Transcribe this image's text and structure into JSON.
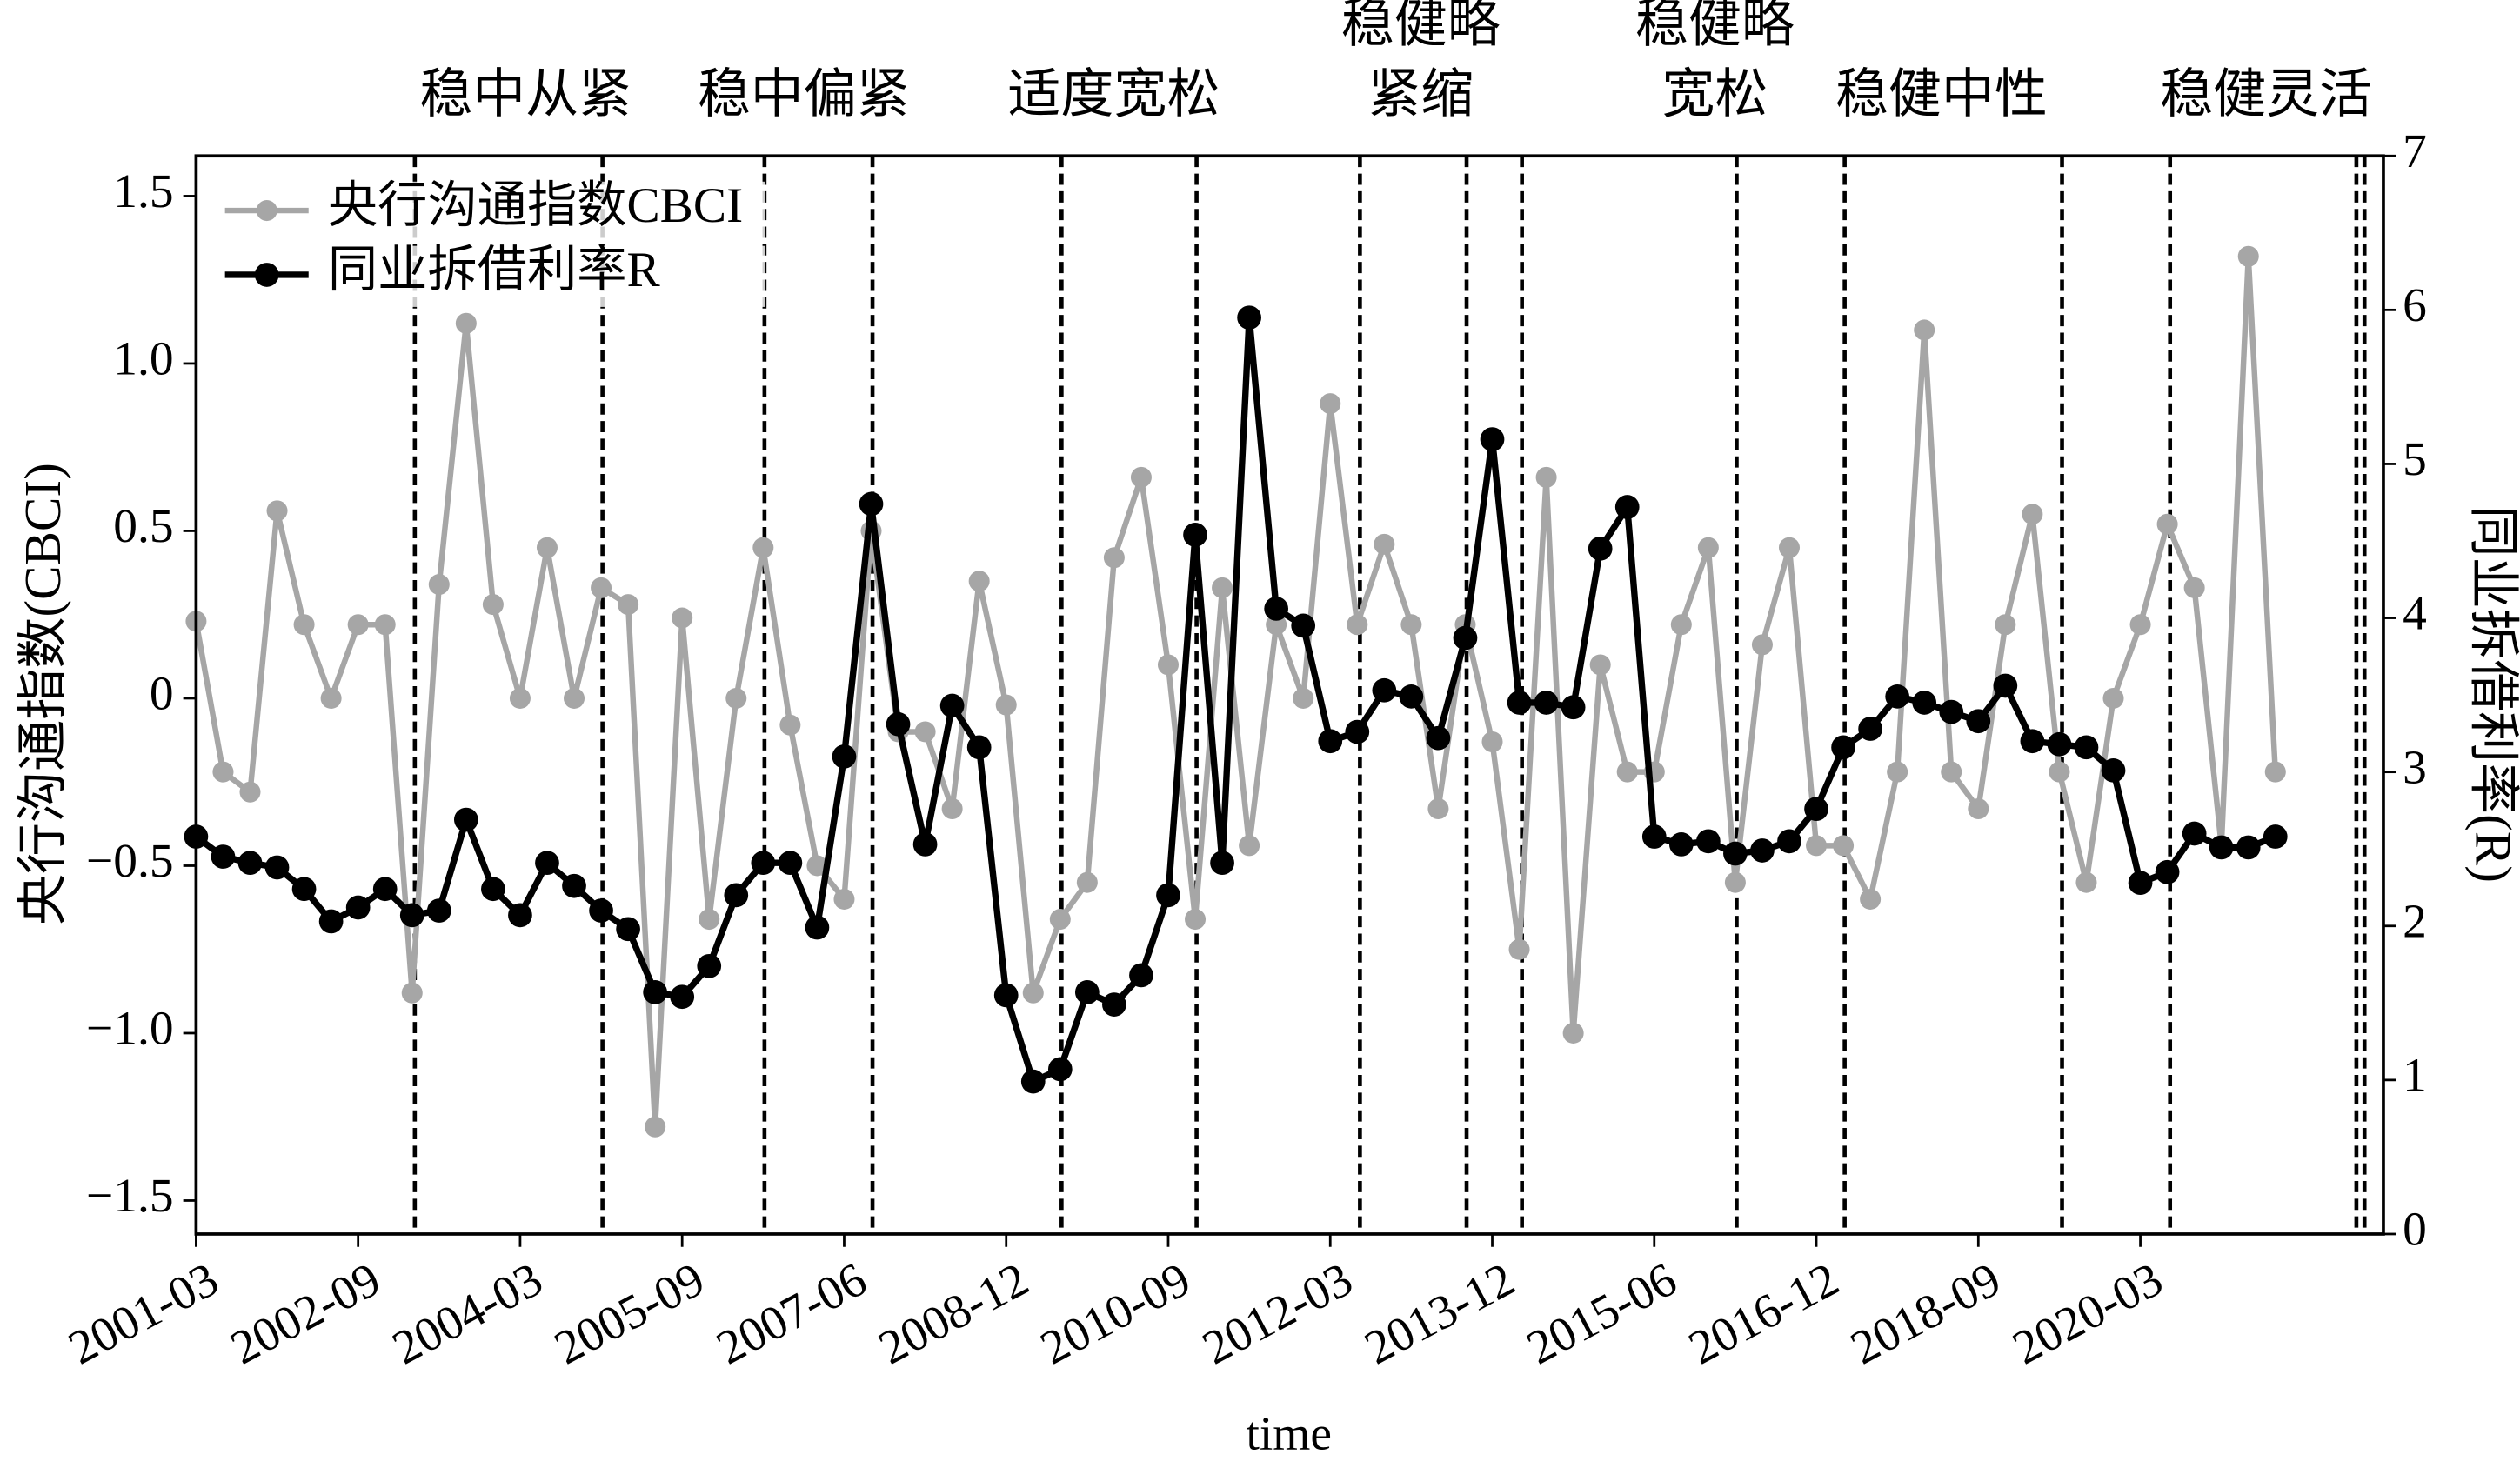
{
  "chart_data": {
    "type": "line",
    "xlabel": "time",
    "ylabel": "央行沟通指数(CBCI)",
    "y2label": "同业拆借利率(R)",
    "categories": [
      "2001-03",
      null,
      null,
      null,
      null,
      null,
      "2002-09",
      null,
      null,
      null,
      null,
      null,
      "2004-03",
      null,
      null,
      null,
      null,
      null,
      "2005-09",
      null,
      null,
      null,
      null,
      null,
      "2007-06",
      null,
      null,
      null,
      null,
      null,
      "2008-12",
      null,
      null,
      null,
      null,
      null,
      "2010-09",
      null,
      null,
      null,
      null,
      null,
      "2012-03",
      null,
      null,
      null,
      null,
      null,
      "2013-12",
      null,
      null,
      null,
      null,
      null,
      "2015-06",
      null,
      null,
      null,
      null,
      null,
      "2016-12",
      null,
      null,
      null,
      null,
      null,
      "2018-09",
      null,
      null,
      null,
      null,
      null,
      "2020-03",
      null,
      null,
      null,
      null,
      null
    ],
    "xlim": [
      0,
      81
    ],
    "ylim": [
      -1.6,
      1.62
    ],
    "yticks": [
      {
        "value": -1.5,
        "label": "−1.5"
      },
      {
        "value": -1,
        "label": "−1.0"
      },
      {
        "value": -0.5,
        "label": "−0.5"
      },
      0,
      0.5,
      {
        "value": 1,
        "label": "1.0"
      },
      1.5
    ],
    "y2lim": [
      0,
      7
    ],
    "y2ticks": [
      0,
      1,
      2,
      3,
      4,
      5,
      6,
      7
    ],
    "legend": "upper left",
    "series": [
      {
        "name": "央行沟通指数CBCI",
        "color": "#a6a6a6",
        "values": [
          0.23,
          -0.22,
          -0.28,
          0.56,
          0.22,
          0.0,
          0.22,
          0.22,
          -0.88,
          0.34,
          1.12,
          0.28,
          0.0,
          0.45,
          0.0,
          0.33,
          0.28,
          -1.28,
          0.24,
          -0.66,
          0.0,
          0.45,
          -0.08,
          -0.5,
          -0.6,
          0.5,
          -0.1,
          -0.1,
          -0.33,
          0.35,
          -0.02,
          -0.88,
          -0.66,
          -0.55,
          0.42,
          0.66,
          0.1,
          -0.66,
          0.33,
          -0.44,
          0.22,
          0.0,
          0.88,
          0.22,
          0.46,
          0.22,
          -0.33,
          0.22,
          -0.13,
          -0.75,
          0.66,
          -1.0,
          0.1,
          -0.22,
          -0.22,
          0.22,
          0.45,
          -0.55,
          0.16,
          0.45,
          -0.44,
          -0.44,
          -0.6,
          -0.22,
          1.1,
          -0.22,
          -0.33,
          0.22,
          0.55,
          -0.22,
          -0.55,
          0.0,
          0.22,
          0.52,
          0.33,
          -0.44,
          1.32,
          -0.22
        ]
      },
      {
        "name": "同业拆借利率R",
        "color": "#000000",
        "axis": "y2",
        "values": [
          2.58,
          2.45,
          2.41,
          2.38,
          2.24,
          2.03,
          2.12,
          2.24,
          2.07,
          2.1,
          2.69,
          2.24,
          2.07,
          2.41,
          2.26,
          2.1,
          1.98,
          1.57,
          1.54,
          1.74,
          2.2,
          2.41,
          2.41,
          1.99,
          3.1,
          4.74,
          3.31,
          2.53,
          3.43,
          3.16,
          1.55,
          0.99,
          1.07,
          1.57,
          1.49,
          1.68,
          2.2,
          4.54,
          2.41,
          5.95,
          4.06,
          3.95,
          3.2,
          3.26,
          3.53,
          3.49,
          3.22,
          3.87,
          5.16,
          3.45,
          3.45,
          3.42,
          4.45,
          4.72,
          2.58,
          2.53,
          2.55,
          2.47,
          2.49,
          2.55,
          2.76,
          3.16,
          3.28,
          3.49,
          3.45,
          3.39,
          3.33,
          3.56,
          3.2,
          3.18,
          3.16,
          3.01,
          2.28,
          2.35,
          2.6,
          2.51,
          2.51,
          2.58
        ]
      }
    ],
    "vlines": [
      8.1,
      15.05,
      21.05,
      25.05,
      32.05,
      37.05,
      43.1,
      47.05,
      49.1,
      57.05,
      61.05,
      69.1,
      73.1,
      80.0,
      80.3
    ],
    "periods": [
      [
        "稳中从紧"
      ],
      [
        "稳中偏紧"
      ],
      [
        "适度宽松"
      ],
      [
        "稳健略",
        "紧缩"
      ],
      [
        "稳健略",
        "宽松"
      ],
      [
        "稳健中性"
      ],
      [
        "稳健灵活"
      ]
    ]
  }
}
